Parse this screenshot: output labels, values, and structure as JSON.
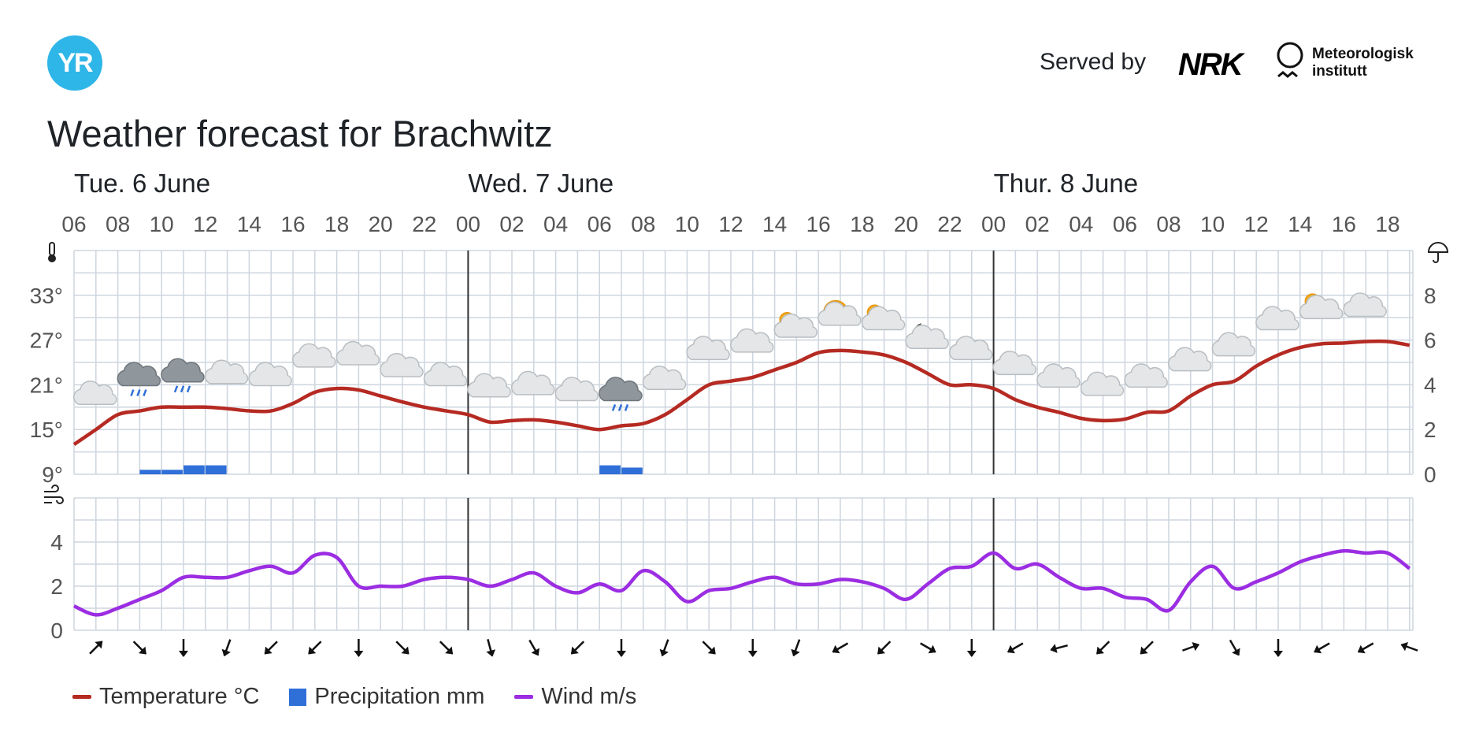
{
  "header": {
    "logo_text": "YR",
    "served_by": "Served by",
    "nrk_text": "NRK",
    "met_line1": "Meteorologisk",
    "met_line2": "institutt"
  },
  "title": "Weather forecast for Brachwitz",
  "colors": {
    "temperature": "#b52a22",
    "precipitation": "#2f6fd8",
    "wind": "#9b2de2",
    "grid": "#cdd5de",
    "day_divider": "#333333"
  },
  "legend": {
    "temperature": "Temperature °C",
    "precipitation": "Precipitation mm",
    "wind": "Wind m/s"
  },
  "chart_data": {
    "type": "line",
    "days": [
      {
        "label": "Tue. 6 June",
        "start_hour_index": 0
      },
      {
        "label": "Wed. 7 June",
        "start_hour_index": 18
      },
      {
        "label": "Thur. 8 June",
        "start_hour_index": 42
      }
    ],
    "x_tick_labels": [
      "06",
      "08",
      "10",
      "12",
      "14",
      "16",
      "18",
      "20",
      "22",
      "00",
      "02",
      "04",
      "06",
      "08",
      "10",
      "12",
      "14",
      "16",
      "18",
      "20",
      "22",
      "00",
      "02",
      "04",
      "06",
      "08",
      "10",
      "12",
      "14",
      "16",
      "18"
    ],
    "hours": [
      "06",
      "07",
      "08",
      "09",
      "10",
      "11",
      "12",
      "13",
      "14",
      "15",
      "16",
      "17",
      "18",
      "19",
      "20",
      "21",
      "22",
      "23",
      "00",
      "01",
      "02",
      "03",
      "04",
      "05",
      "06",
      "07",
      "08",
      "09",
      "10",
      "11",
      "12",
      "13",
      "14",
      "15",
      "16",
      "17",
      "18",
      "19",
      "20",
      "21",
      "22",
      "23",
      "00",
      "01",
      "02",
      "03",
      "04",
      "05",
      "06",
      "07",
      "08",
      "09",
      "10",
      "11",
      "12",
      "13",
      "14",
      "15",
      "16",
      "17",
      "18",
      "19"
    ],
    "temperature": {
      "ylabel_ticks": [
        "9°",
        "15°",
        "21°",
        "27°",
        "33°"
      ],
      "ylim": [
        9,
        39
      ],
      "values": [
        13,
        15,
        17,
        17.5,
        18,
        18,
        18,
        17.8,
        17.5,
        17.5,
        18.5,
        20,
        20.5,
        20.3,
        19.5,
        18.7,
        18,
        17.5,
        17,
        16,
        16.2,
        16.3,
        16,
        15.5,
        15,
        15.5,
        15.8,
        17,
        19,
        21,
        21.5,
        22,
        23,
        24,
        25.3,
        25.6,
        25.4,
        25,
        24,
        22.5,
        21,
        21,
        20.5,
        19,
        18,
        17.3,
        16.5,
        16.2,
        16.4,
        17.3,
        17.5,
        19.5,
        21,
        21.5,
        23.5,
        25,
        26,
        26.5,
        26.6,
        26.8,
        26.8,
        26.3
      ]
    },
    "precipitation": {
      "ylabel_ticks": [
        "0",
        "2",
        "4",
        "6",
        "8"
      ],
      "ylim": [
        0,
        10
      ],
      "values": [
        0,
        0,
        0,
        0.2,
        0.2,
        0.4,
        0.4,
        0,
        0,
        0,
        0,
        0,
        0,
        0,
        0,
        0,
        0,
        0,
        0,
        0,
        0,
        0,
        0,
        0,
        0.4,
        0.3,
        0,
        0,
        0,
        0,
        0,
        0,
        0,
        0,
        0,
        0,
        0,
        0,
        0,
        0,
        0,
        0,
        0,
        0,
        0,
        0,
        0,
        0,
        0,
        0,
        0,
        0,
        0,
        0,
        0,
        0,
        0,
        0,
        0,
        0,
        0,
        0
      ]
    },
    "wind": {
      "ylabel_ticks": [
        "0",
        "2",
        "4"
      ],
      "ylim": [
        0,
        6
      ],
      "values": [
        1.1,
        0.7,
        1,
        1.4,
        1.8,
        2.4,
        2.4,
        2.4,
        2.7,
        2.9,
        2.6,
        3.4,
        3.3,
        2,
        2,
        2,
        2.3,
        2.4,
        2.3,
        2,
        2.3,
        2.6,
        2,
        1.7,
        2.1,
        1.8,
        2.7,
        2.2,
        1.3,
        1.8,
        1.9,
        2.2,
        2.4,
        2.1,
        2.1,
        2.3,
        2.2,
        1.9,
        1.4,
        2.1,
        2.8,
        2.9,
        3.5,
        2.8,
        3,
        2.4,
        1.9,
        1.9,
        1.5,
        1.4,
        0.9,
        2.2,
        2.9,
        1.9,
        2.2,
        2.6,
        3.1,
        3.4,
        3.6,
        3.5,
        3.5,
        2.8
      ]
    },
    "wind_directions_deg": [
      225,
      315,
      0,
      20,
      45,
      45,
      0,
      315,
      315,
      345,
      330,
      45,
      0,
      20,
      315,
      0,
      20,
      60,
      45,
      300,
      0,
      60,
      75,
      45,
      45,
      250,
      330,
      0,
      60,
      60,
      110
    ],
    "weather_icons": [
      {
        "hour_index": 1,
        "kind": "cloud"
      },
      {
        "hour_index": 3,
        "kind": "rain"
      },
      {
        "hour_index": 5,
        "kind": "rain"
      },
      {
        "hour_index": 7,
        "kind": "cloud"
      },
      {
        "hour_index": 9,
        "kind": "cloud"
      },
      {
        "hour_index": 11,
        "kind": "cloud"
      },
      {
        "hour_index": 13,
        "kind": "cloud"
      },
      {
        "hour_index": 15,
        "kind": "cloud"
      },
      {
        "hour_index": 17,
        "kind": "cloud"
      },
      {
        "hour_index": 19,
        "kind": "cloud"
      },
      {
        "hour_index": 21,
        "kind": "cloud"
      },
      {
        "hour_index": 23,
        "kind": "cloud"
      },
      {
        "hour_index": 25,
        "kind": "rain"
      },
      {
        "hour_index": 27,
        "kind": "cloud"
      },
      {
        "hour_index": 29,
        "kind": "cloud"
      },
      {
        "hour_index": 31,
        "kind": "cloud"
      },
      {
        "hour_index": 33,
        "kind": "partly-sunny"
      },
      {
        "hour_index": 35,
        "kind": "sunny-cloud"
      },
      {
        "hour_index": 37,
        "kind": "partly-sunny"
      },
      {
        "hour_index": 39,
        "kind": "night-cloud"
      },
      {
        "hour_index": 41,
        "kind": "cloud"
      },
      {
        "hour_index": 43,
        "kind": "cloud"
      },
      {
        "hour_index": 45,
        "kind": "cloud"
      },
      {
        "hour_index": 47,
        "kind": "cloud"
      },
      {
        "hour_index": 49,
        "kind": "cloud"
      },
      {
        "hour_index": 51,
        "kind": "cloud"
      },
      {
        "hour_index": 53,
        "kind": "cloud"
      },
      {
        "hour_index": 55,
        "kind": "cloud"
      },
      {
        "hour_index": 57,
        "kind": "partly-sunny"
      },
      {
        "hour_index": 59,
        "kind": "cloud"
      }
    ]
  }
}
